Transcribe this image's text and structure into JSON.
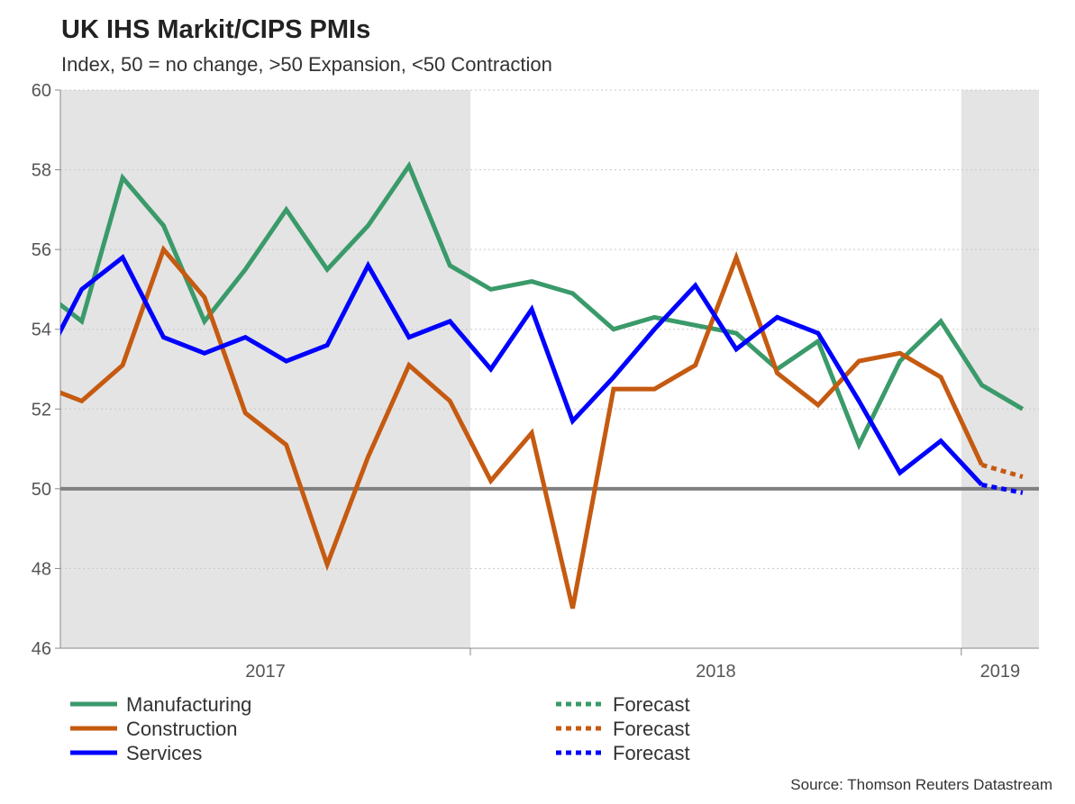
{
  "chart_data": {
    "type": "line",
    "title": "UK IHS Markit/CIPS PMIs",
    "subtitle": "Index, 50 = no change, >50 Expansion, <50 Contraction",
    "source": "Source: Thomson Reuters Datastream",
    "x": [
      "2017-02",
      "2017-03",
      "2017-04",
      "2017-05",
      "2017-06",
      "2017-07",
      "2017-08",
      "2017-09",
      "2017-10",
      "2017-11",
      "2017-12",
      "2018-01",
      "2018-02",
      "2018-03",
      "2018-04",
      "2018-05",
      "2018-06",
      "2018-07",
      "2018-08",
      "2018-09",
      "2018-10",
      "2018-11",
      "2018-12",
      "2019-01",
      "2019-02"
    ],
    "x_tick_labels": [
      "2017",
      "2018",
      "2019"
    ],
    "ylim": [
      46,
      60
    ],
    "y_ticks": [
      46,
      48,
      50,
      52,
      54,
      56,
      58,
      60
    ],
    "reference_line": 50,
    "grid": "horizontal dotted",
    "shaded_years": [
      "2017",
      "2019"
    ],
    "series": [
      {
        "name": "Manufacturing",
        "color": "#3a9a6a",
        "values": [
          55.0,
          54.2,
          57.8,
          56.6,
          54.2,
          55.5,
          57.0,
          55.5,
          56.6,
          58.1,
          55.6,
          55.0,
          55.2,
          54.9,
          54.0,
          54.3,
          54.1,
          53.9,
          53.0,
          53.7,
          51.1,
          53.2,
          54.2,
          52.6,
          52.0
        ]
      },
      {
        "name": "Construction",
        "color": "#c55a11",
        "values": [
          52.6,
          52.2,
          53.1,
          56.0,
          54.8,
          51.9,
          51.1,
          48.1,
          50.8,
          53.1,
          52.2,
          50.2,
          51.4,
          47.0,
          52.5,
          52.5,
          53.1,
          55.8,
          52.9,
          52.1,
          53.2,
          53.4,
          52.8,
          50.6,
          null
        ]
      },
      {
        "name": "Services",
        "color": "#0000ff",
        "values": [
          53.0,
          55.0,
          55.8,
          53.8,
          53.4,
          53.8,
          53.2,
          53.6,
          55.6,
          53.8,
          54.2,
          53.0,
          54.5,
          51.7,
          52.8,
          54.0,
          55.1,
          53.5,
          54.3,
          53.9,
          52.2,
          50.4,
          51.2,
          50.1,
          null
        ]
      }
    ],
    "forecasts": [
      {
        "name": "Forecast",
        "color": "#3a9a6a",
        "x": [],
        "values": []
      },
      {
        "name": "Forecast",
        "color": "#c55a11",
        "x": [
          "2019-01",
          "2019-02"
        ],
        "values": [
          50.6,
          50.3
        ]
      },
      {
        "name": "Forecast",
        "color": "#0000ff",
        "x": [
          "2019-01",
          "2019-02"
        ],
        "values": [
          50.1,
          49.9
        ]
      }
    ],
    "legend_placement": "bottom"
  }
}
